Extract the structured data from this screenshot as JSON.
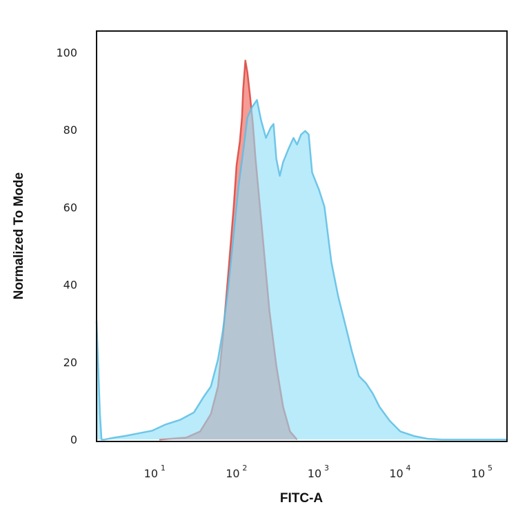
{
  "chart_data": {
    "type": "area",
    "title": "",
    "xlabel": "FITC-A",
    "ylabel": "Normalized To Mode",
    "x_scale": "log",
    "xlim": [
      2,
      209000
    ],
    "ylim": [
      -0.5,
      105.5
    ],
    "x_ticks": [
      {
        "base": "10",
        "exp": "1",
        "value": 10
      },
      {
        "base": "10",
        "exp": "2",
        "value": 100
      },
      {
        "base": "10",
        "exp": "3",
        "value": 1000
      },
      {
        "base": "10",
        "exp": "4",
        "value": 10000
      },
      {
        "base": "10",
        "exp": "5",
        "value": 100000
      }
    ],
    "y_ticks": [
      "0",
      "20",
      "40",
      "60",
      "80",
      "100"
    ],
    "grid": false,
    "legend": "none",
    "series": [
      {
        "color_fill": "#f28b82",
        "color_line": "#d9443c",
        "x": [
          11.7,
          25,
          37,
          50,
          61,
          70,
          81,
          95,
          103,
          113,
          120,
          124,
          132,
          140,
          151,
          163,
          176,
          214,
          260,
          316,
          383,
          464,
          565
        ],
        "y": [
          0,
          0.5,
          2.1,
          6.6,
          13.7,
          26.2,
          42.2,
          60.1,
          70.8,
          77,
          83.2,
          90.4,
          97.9,
          94.8,
          88.6,
          81.5,
          72.5,
          52.9,
          33.3,
          19.1,
          8.4,
          2.1,
          0
        ]
      },
      {
        "color_fill": "#8fdff7",
        "color_line": "#5bbde4",
        "x": [
          2.0,
          2.2,
          2.3,
          2.5,
          3.3,
          4.4,
          6.5,
          9.6,
          14,
          21,
          31,
          41,
          50,
          61,
          70,
          81,
          95,
          109,
          124,
          140,
          160,
          183,
          206,
          236,
          270,
          292,
          316,
          348,
          383,
          447,
          512,
          565,
          634,
          713,
          785,
          865,
          971,
          1050,
          1225,
          1488,
          1807,
          2194,
          2663,
          3235,
          3928,
          4768,
          5786,
          7730,
          10350,
          15250,
          22480,
          33100,
          209000
        ],
        "y": [
          30.7,
          6.6,
          0,
          0,
          0.5,
          0.9,
          1.6,
          2.3,
          3.9,
          5.1,
          7.0,
          11.1,
          13.7,
          20.7,
          28.0,
          38.7,
          53,
          65.4,
          74.3,
          83.2,
          85.9,
          87.7,
          82.4,
          77.9,
          80.6,
          81.5,
          72.5,
          68.1,
          71.7,
          75.2,
          77.9,
          76.2,
          78.8,
          79.7,
          78.8,
          69,
          66.3,
          64.5,
          60.1,
          45.8,
          36.9,
          29.8,
          22.6,
          16.4,
          14.6,
          11.9,
          8.4,
          4.8,
          2.1,
          0.9,
          0.2,
          0,
          0
        ]
      }
    ]
  }
}
